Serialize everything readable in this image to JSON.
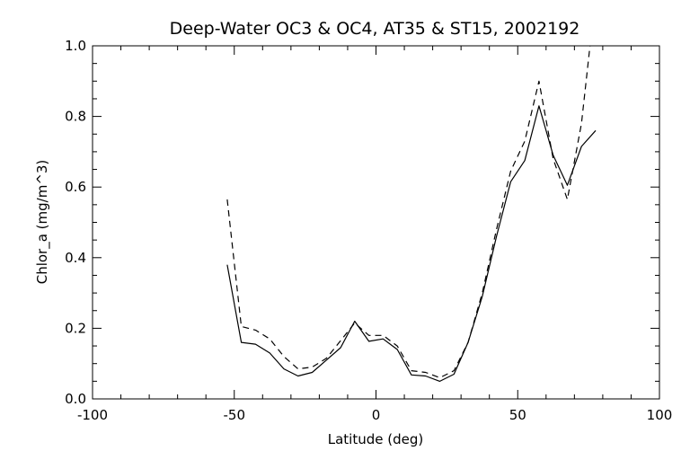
{
  "chart_data": {
    "type": "line",
    "title": "Deep-Water OC3 & OC4, AT35 & ST15, 2002192",
    "xlabel": "Latitude (deg)",
    "ylabel": "Chlor_a (mg/m^3)",
    "xlim": [
      -100,
      100
    ],
    "ylim": [
      0.0,
      1.0
    ],
    "xticks": [
      "-100",
      "-50",
      "0",
      "50",
      "100"
    ],
    "yticks": [
      "0.0",
      "0.2",
      "0.4",
      "0.6",
      "0.8",
      "1.0"
    ],
    "grid": false,
    "legend": "none",
    "series": [
      {
        "style": "solid",
        "x": [
          -52.5,
          -47.5,
          -42.5,
          -37.5,
          -32.5,
          -27.5,
          -22.5,
          -17.5,
          -12.5,
          -7.5,
          -2.5,
          2.5,
          7.5,
          12.5,
          17.5,
          22.5,
          27.5,
          32.5,
          37.5,
          42.5,
          47.5,
          52.5,
          57.5,
          62.5,
          67.5,
          72.5,
          77.5
        ],
        "y": [
          0.38,
          0.16,
          0.155,
          0.13,
          0.085,
          0.065,
          0.075,
          0.11,
          0.145,
          0.22,
          0.163,
          0.17,
          0.14,
          0.068,
          0.065,
          0.05,
          0.07,
          0.16,
          0.29,
          0.46,
          0.615,
          0.675,
          0.83,
          0.69,
          0.605,
          0.715,
          0.76
        ]
      },
      {
        "style": "dashed",
        "x": [
          -52.5,
          -47.5,
          -42.5,
          -37.5,
          -32.5,
          -27.5,
          -22.5,
          -17.5,
          -12.5,
          -7.5,
          -2.5,
          2.5,
          7.5,
          12.5,
          17.5,
          22.5,
          27.5,
          32.5,
          37.5,
          42.5,
          47.5,
          52.5,
          57.5,
          62.5,
          67.5,
          72.5,
          75.5
        ],
        "y": [
          0.565,
          0.205,
          0.195,
          0.17,
          0.12,
          0.085,
          0.09,
          0.115,
          0.165,
          0.215,
          0.18,
          0.18,
          0.15,
          0.08,
          0.075,
          0.06,
          0.08,
          0.16,
          0.3,
          0.48,
          0.645,
          0.73,
          0.9,
          0.68,
          0.565,
          0.78,
          1.0
        ]
      }
    ]
  }
}
